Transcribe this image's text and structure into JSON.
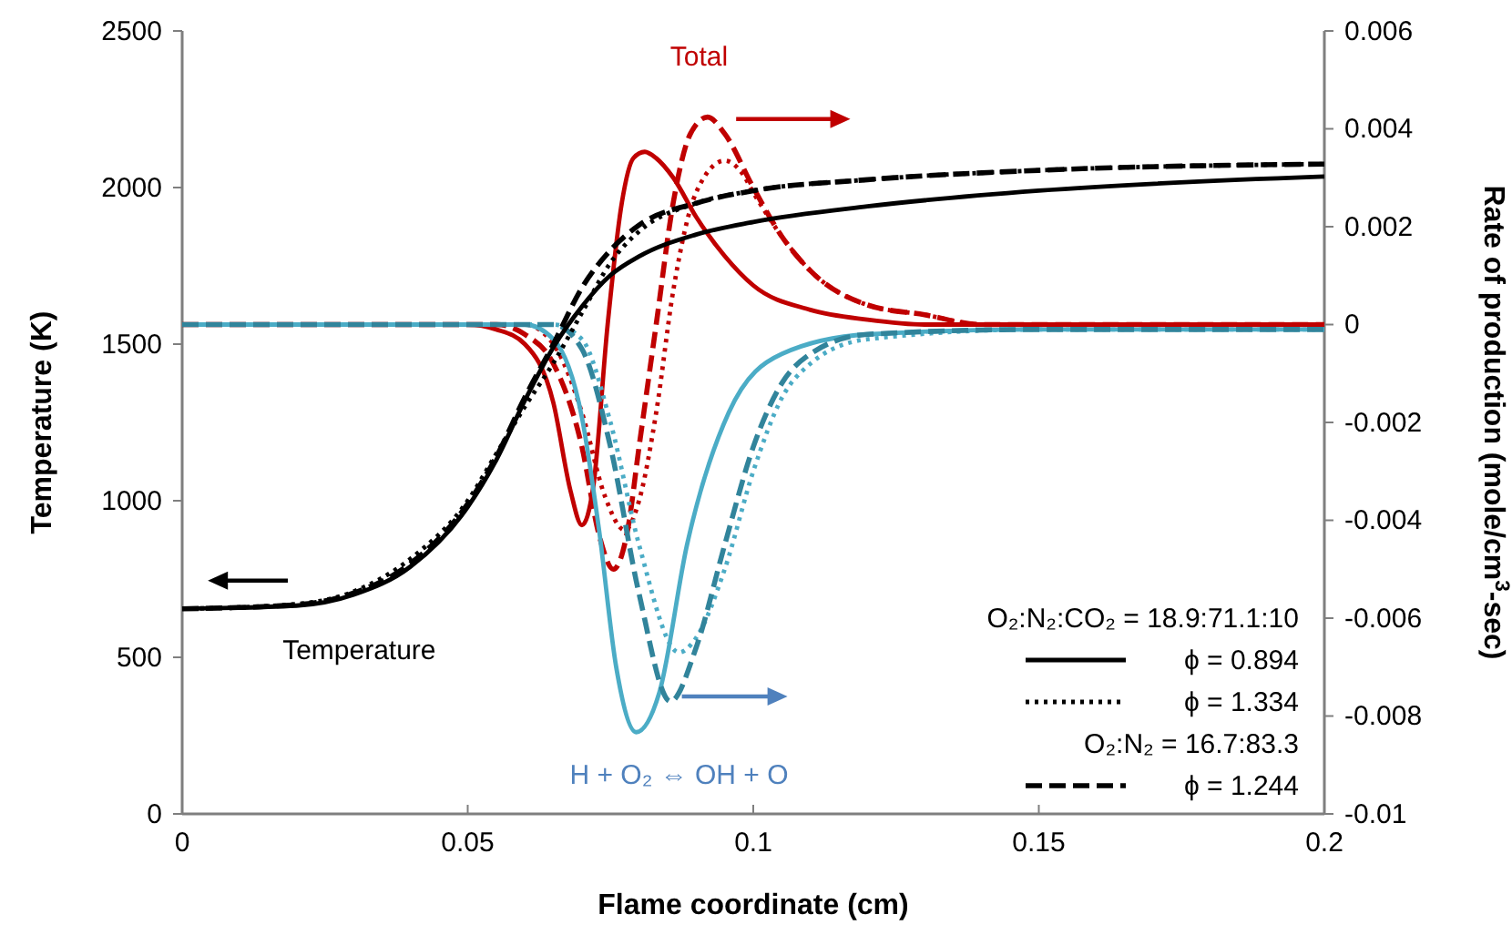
{
  "chart_data": {
    "type": "line",
    "xlabel": "Flame coordinate (cm)",
    "ylabel": "Temperature (K)",
    "y2label": "Rate of production (mole/cm$^{3}$-sec)",
    "xlim": [
      0,
      0.2
    ],
    "xticks": [
      0,
      0.05,
      0.1,
      0.15,
      0.2
    ],
    "ylim": [
      0,
      2500
    ],
    "yticks": [
      0,
      500,
      1000,
      1500,
      2000,
      2500
    ],
    "y2lim": [
      -0.01,
      0.006
    ],
    "y2ticks": [
      -0.01,
      -0.008,
      -0.006,
      -0.004,
      -0.002,
      0,
      0.002,
      0.004,
      0.006
    ],
    "grid": false,
    "legend": "bottom right",
    "marker": "none",
    "annotations": [
      "Total",
      "H + O₂ ⇔ OH + O",
      "Temperature",
      "O₂:N₂:CO₂ = 18.9:71.1:10",
      "O₂:N₂ = 16.7:83.3"
    ],
    "series": [
      {
        "name": "ϕ = 0.894",
        "color": "#000000",
        "line_style": "solid",
        "x": [
          0,
          0.02,
          0.03,
          0.04,
          0.05,
          0.055,
          0.06,
          0.065,
          0.07,
          0.075,
          0.08,
          0.09,
          0.1,
          0.12,
          0.15,
          0.2
        ],
        "values": [
          655,
          665,
          700,
          790,
          980,
          1130,
          1320,
          1490,
          1620,
          1720,
          1780,
          1850,
          1890,
          1940,
          1990,
          2035
        ]
      },
      {
        "name": "ϕ = 1.334",
        "color": "#000000",
        "line_style": "dotted",
        "x": [
          0,
          0.02,
          0.03,
          0.04,
          0.05,
          0.055,
          0.06,
          0.065,
          0.07,
          0.075,
          0.08,
          0.09,
          0.1,
          0.12,
          0.15,
          0.2
        ],
        "values": [
          655,
          670,
          710,
          815,
          1000,
          1150,
          1300,
          1440,
          1600,
          1760,
          1860,
          1950,
          1990,
          2025,
          2055,
          2075
        ]
      },
      {
        "name": "ϕ = 1.244",
        "color": "#000000",
        "line_style": "dashed",
        "x": [
          0,
          0.02,
          0.03,
          0.04,
          0.05,
          0.055,
          0.06,
          0.065,
          0.07,
          0.075,
          0.08,
          0.09,
          0.1,
          0.12,
          0.15,
          0.2
        ],
        "values": [
          655,
          668,
          705,
          800,
          990,
          1140,
          1330,
          1500,
          1680,
          1800,
          1880,
          1950,
          1990,
          2025,
          2055,
          2075
        ]
      },
      {
        "color": "#c00000",
        "line_style": "solid",
        "axis": "y2",
        "x": [
          0,
          0.05,
          0.055,
          0.06,
          0.065,
          0.068,
          0.07,
          0.072,
          0.0745,
          0.077,
          0.079,
          0.081,
          0.083,
          0.086,
          0.09,
          0.095,
          0.1,
          0.11,
          0.12,
          0.13,
          0.2
        ],
        "values": [
          0,
          0,
          -0.0001,
          -0.0004,
          -0.0016,
          -0.0034,
          -0.0041,
          -0.0033,
          0,
          0.0025,
          0.0034,
          0.00353,
          0.0034,
          0.003,
          0.0022,
          0.0014,
          0.0008,
          0.0003,
          0.0001,
          0,
          0
        ]
      },
      {
        "color": "#c00000",
        "line_style": "dotted",
        "axis": "y2",
        "x": [
          0,
          0.06,
          0.065,
          0.07,
          0.074,
          0.0775,
          0.08,
          0.083,
          0.086,
          0.09,
          0.095,
          0.098,
          0.1,
          0.105,
          0.11,
          0.12,
          0.13,
          0.14,
          0.2
        ],
        "values": [
          0,
          0,
          -0.0004,
          -0.0018,
          -0.0035,
          -0.0042,
          -0.0036,
          -0.0018,
          0.0007,
          0.0027,
          0.00335,
          0.0031,
          0.0027,
          0.0018,
          0.0011,
          0.0004,
          0.0002,
          0,
          0
        ]
      },
      {
        "color": "#c00000",
        "line_style": "dashed",
        "axis": "y2",
        "x": [
          0,
          0.055,
          0.06,
          0.065,
          0.07,
          0.073,
          0.0755,
          0.078,
          0.08,
          0.083,
          0.086,
          0.089,
          0.092,
          0.095,
          0.1,
          0.105,
          0.11,
          0.12,
          0.13,
          0.14,
          0.2
        ],
        "values": [
          0,
          0,
          -0.0002,
          -0.0008,
          -0.0025,
          -0.0043,
          -0.005,
          -0.0042,
          -0.0025,
          0,
          0.0025,
          0.0039,
          0.00424,
          0.0039,
          0.0028,
          0.0018,
          0.0011,
          0.0004,
          0.0002,
          0,
          0
        ]
      },
      {
        "color": "#4bacc6",
        "line_style": "solid",
        "axis": "y2",
        "x": [
          0,
          0.06,
          0.065,
          0.07,
          0.073,
          0.076,
          0.0795,
          0.0836,
          0.0884,
          0.0957,
          0.105,
          0.12,
          0.15,
          0.2
        ],
        "values": [
          0,
          0,
          -0.0003,
          -0.0019,
          -0.0042,
          -0.007,
          -0.00833,
          -0.0075,
          -0.0045,
          -0.0018,
          -0.0006,
          -0.0002,
          -0.0001,
          -0.0001
        ]
      },
      {
        "color": "#4bacc6",
        "line_style": "dotted",
        "axis": "y2",
        "x": [
          0,
          0.065,
          0.07,
          0.075,
          0.08,
          0.087,
          0.09,
          0.095,
          0.1,
          0.105,
          0.11,
          0.12,
          0.15,
          0.2
        ],
        "values": [
          0,
          0,
          -0.0003,
          -0.002,
          -0.0045,
          -0.0067,
          -0.0064,
          -0.005,
          -0.003,
          -0.0015,
          -0.0008,
          -0.0003,
          -0.0001,
          -0.0001
        ]
      },
      {
        "color": "#31849b",
        "line_style": "dashed",
        "axis": "y2",
        "x": [
          0,
          0.065,
          0.07,
          0.075,
          0.08,
          0.0855,
          0.09,
          0.095,
          0.1,
          0.105,
          0.11,
          0.12,
          0.15,
          0.2
        ],
        "values": [
          0,
          0,
          -0.0005,
          -0.0025,
          -0.0055,
          -0.0077,
          -0.0066,
          -0.0045,
          -0.0025,
          -0.0012,
          -0.0006,
          -0.0002,
          -0.0001,
          -0.0001
        ]
      }
    ]
  }
}
